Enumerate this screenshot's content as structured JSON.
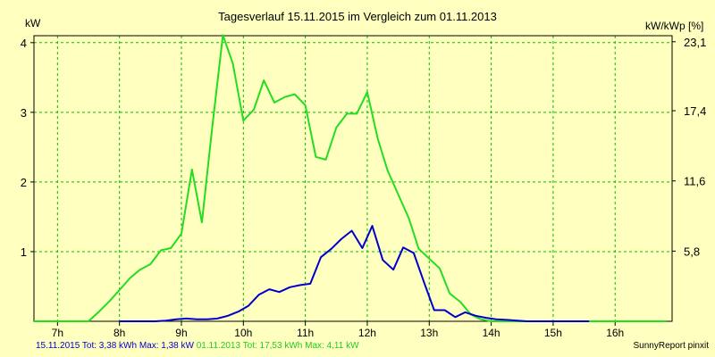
{
  "chart_data": {
    "type": "line",
    "title": "Tagesverlauf 15.11.2015 im Vergleich zum 01.11.2013",
    "ylabel": "kW",
    "y2label": "kW/kWp [%]",
    "ylim": [
      0,
      4.1
    ],
    "y2lim": [
      0,
      23.6
    ],
    "xlim": [
      6.62,
      16.92
    ],
    "x_ticks": [
      7,
      8,
      9,
      10,
      11,
      12,
      13,
      14,
      15,
      16
    ],
    "x_tick_labels": [
      "7h",
      "8h",
      "9h",
      "10h",
      "11h",
      "12h",
      "13h",
      "14h",
      "15h",
      "16h"
    ],
    "y_ticks": [
      1,
      2,
      3,
      4
    ],
    "y_tick_labels": [
      "1",
      "2",
      "3",
      "4"
    ],
    "y2_ticks": [
      5.8,
      11.6,
      17.4,
      23.1
    ],
    "y2_tick_labels": [
      "5,8",
      "11,6",
      "17,4",
      "23,1"
    ],
    "grid": true,
    "colors": {
      "background": "#FFFFC0",
      "grid": "#00C000",
      "series_2015": "#0000CC",
      "series_2013": "#22DD22"
    },
    "series": [
      {
        "name": "15.11.2015",
        "color": "#0000CC",
        "x": [
          8.0,
          8.33,
          8.58,
          8.75,
          8.92,
          9.08,
          9.25,
          9.42,
          9.58,
          9.75,
          9.92,
          10.08,
          10.25,
          10.42,
          10.58,
          10.75,
          10.92,
          11.08,
          11.25,
          11.42,
          11.58,
          11.75,
          11.92,
          12.08,
          12.25,
          12.42,
          12.58,
          12.75,
          12.92,
          13.08,
          13.25,
          13.42,
          13.58,
          13.75,
          13.92,
          14.08,
          14.25,
          14.42,
          14.58,
          14.75,
          14.92,
          15.08,
          15.25,
          15.42,
          15.58
        ],
        "y": [
          0.0,
          0.0,
          0.0,
          0.01,
          0.03,
          0.04,
          0.03,
          0.03,
          0.04,
          0.08,
          0.14,
          0.22,
          0.38,
          0.46,
          0.42,
          0.49,
          0.52,
          0.54,
          0.92,
          1.04,
          1.18,
          1.3,
          1.05,
          1.37,
          0.88,
          0.74,
          1.06,
          0.98,
          0.55,
          0.16,
          0.16,
          0.06,
          0.13,
          0.08,
          0.05,
          0.03,
          0.02,
          0.01,
          0.0,
          0.0,
          0.0,
          0.0,
          0.0,
          0.0,
          0.0
        ]
      },
      {
        "name": "01.11.2013",
        "color": "#22DD22",
        "x": [
          6.62,
          6.83,
          7.0,
          7.17,
          7.33,
          7.5,
          7.67,
          7.83,
          8.0,
          8.17,
          8.33,
          8.5,
          8.67,
          8.83,
          9.0,
          9.17,
          9.33,
          9.5,
          9.67,
          9.83,
          10.0,
          10.17,
          10.33,
          10.5,
          10.67,
          10.83,
          11.0,
          11.17,
          11.33,
          11.5,
          11.67,
          11.83,
          12.0,
          12.17,
          12.33,
          12.5,
          12.67,
          12.83,
          13.0,
          13.17,
          13.33,
          13.5,
          13.67,
          13.83,
          14.0,
          14.17,
          14.33,
          14.5,
          14.67,
          14.83,
          15.0,
          15.17,
          15.33,
          15.5,
          15.67,
          15.83,
          16.0,
          16.17,
          16.33,
          16.5,
          16.67,
          16.83
        ],
        "y": [
          0.0,
          0.0,
          0.0,
          0.0,
          0.0,
          0.0,
          0.14,
          0.28,
          0.45,
          0.62,
          0.74,
          0.82,
          1.02,
          1.05,
          1.26,
          2.18,
          1.42,
          2.8,
          4.11,
          3.7,
          2.88,
          3.04,
          3.46,
          3.14,
          3.22,
          3.26,
          3.1,
          2.36,
          2.32,
          2.78,
          2.98,
          2.98,
          3.29,
          2.62,
          2.16,
          1.82,
          1.48,
          1.04,
          0.9,
          0.76,
          0.4,
          0.28,
          0.1,
          0.03,
          0.0,
          0.0,
          0.0,
          0.0,
          0.0,
          0.0,
          0.0,
          0.0,
          0.0,
          0.0,
          0.0,
          0.0,
          0.0,
          0.0,
          0.0,
          0.0,
          0.0,
          0.0
        ]
      }
    ]
  },
  "footer": {
    "blue_text": "15.11.2015 Tot: 3,38 kWh Max: 1,38 kW",
    "green_text": "01.11.2013 Tot: 17,53 kWh Max: 4,11 kW",
    "brand": "SunnyReport pinxit"
  }
}
